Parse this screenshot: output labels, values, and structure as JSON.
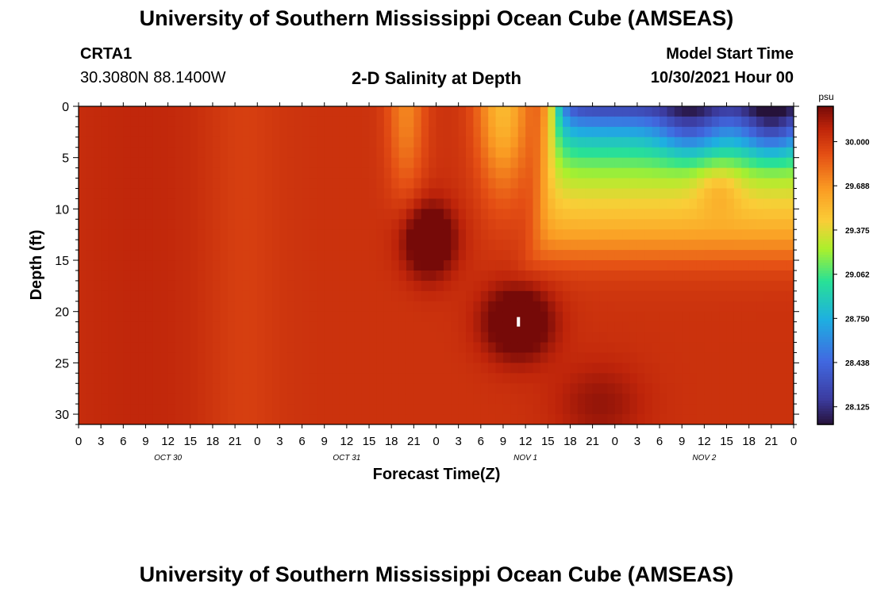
{
  "page": {
    "title": "University of Southern Mississippi Ocean Cube (AMSEAS)",
    "title_repeat": "University of Southern Mississippi Ocean Cube (AMSEAS)",
    "station_id": "CRTA1",
    "station_coords": "30.3080N  88.1400W",
    "plot_title": "2-D Salinity at Depth",
    "model_start_label": "Model Start Time",
    "model_start_value": "10/30/2021 Hour 00"
  },
  "chart_data": {
    "type": "heatmap",
    "title": "2-D Salinity at Depth",
    "xlabel": "Forecast Time(Z)",
    "ylabel": "Depth (ft)",
    "units": "psu",
    "x_range_hours": [
      0,
      96
    ],
    "y_range_ft": [
      0,
      31
    ],
    "y_inverted": true,
    "x_tick_labels": [
      "0",
      "3",
      "6",
      "9",
      "12",
      "15",
      "18",
      "21",
      "0",
      "3",
      "6",
      "9",
      "12",
      "15",
      "18",
      "21",
      "0",
      "3",
      "6",
      "9",
      "12",
      "15",
      "18",
      "21",
      "0",
      "3",
      "6",
      "9",
      "12",
      "15",
      "18",
      "21",
      "0"
    ],
    "y_ticks": [
      0,
      5,
      10,
      15,
      20,
      25,
      30
    ],
    "day_labels": [
      {
        "hour": 12,
        "label": "OCT 30"
      },
      {
        "hour": 36,
        "label": "OCT 31"
      },
      {
        "hour": 60,
        "label": "NOV 1"
      },
      {
        "hour": 84,
        "label": "NOV 2"
      }
    ],
    "colorbar": {
      "range": [
        28.0,
        30.25
      ],
      "tick_values": [
        30.0,
        29.688,
        29.375,
        29.062,
        28.75,
        28.438,
        28.125
      ],
      "tick_labels": [
        "30.000",
        "29.688",
        "29.375",
        "29.062",
        "28.750",
        "28.438",
        "28.125"
      ]
    },
    "depth_levels_ft": [
      0.5,
      1.5,
      2.5,
      3.5,
      4.5,
      5.5,
      6.5,
      7.5,
      8.5,
      9.5,
      10.5,
      11.5,
      12.5,
      13.5,
      14.5,
      15.5,
      16.5,
      17.5,
      18.5,
      19.5,
      20.5,
      21.5,
      22.5,
      23.5,
      24.5,
      25.5,
      26.5,
      27.5,
      28.5,
      29.5,
      30.5
    ],
    "marker": {
      "hour": 59,
      "depth_ft": 21
    }
  }
}
